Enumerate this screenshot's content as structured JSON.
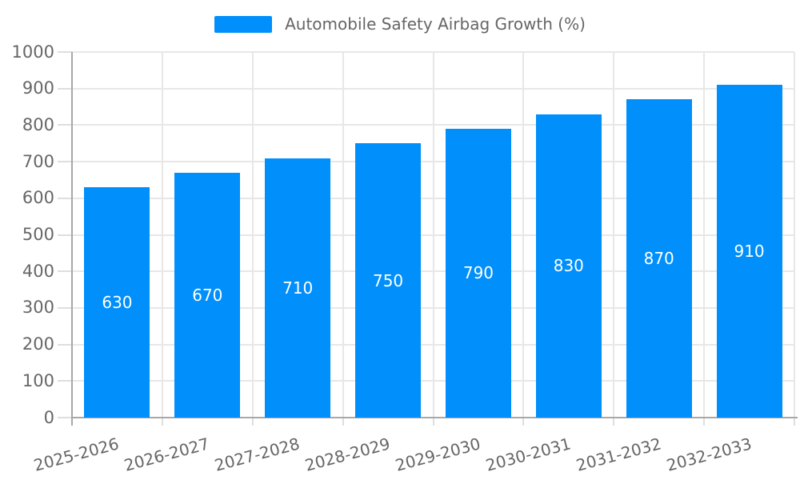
{
  "legend": {
    "label": "Automobile Safety Airbag Growth (%)"
  },
  "colors": {
    "bar": "#008FFB",
    "grid": "#e7e7e7",
    "axis": "#a8a8a8",
    "tick": "#dedede",
    "label_text": "#666666",
    "bar_label_text": "#ffffff"
  },
  "chart_data": {
    "type": "bar",
    "title": "Automobile Safety Airbag Growth (%)",
    "categories": [
      "2025-2026",
      "2026-2027",
      "2027-2028",
      "2028-2029",
      "2029-2030",
      "2030-2031",
      "2031-2032",
      "2032-2033"
    ],
    "values": [
      630,
      670,
      710,
      750,
      790,
      830,
      870,
      910
    ],
    "yticks": [
      0,
      100,
      200,
      300,
      400,
      500,
      600,
      700,
      800,
      900,
      1000
    ],
    "ylim": [
      0,
      1000
    ],
    "xlabel": "",
    "ylabel": "",
    "grid": true,
    "legend_position": "top",
    "data_labels": "values shown in white, centered vertically inside bars",
    "x_label_rotation_deg": -15
  }
}
